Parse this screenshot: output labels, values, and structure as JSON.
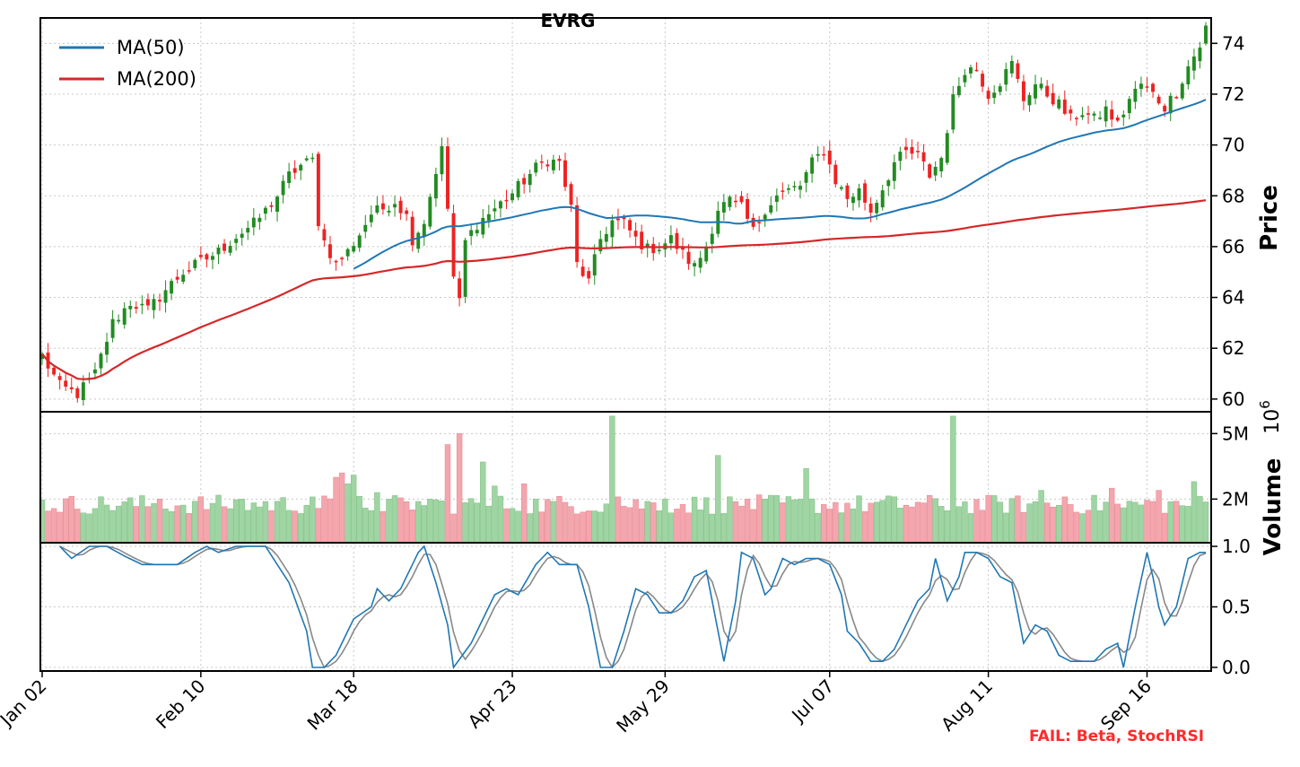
{
  "title": "EVRG",
  "status_note": "FAIL: Beta, StochRSI",
  "colors": {
    "up": "#228b22",
    "down": "#ee2222",
    "vol_up": "#9fd4a3",
    "vol_down": "#f5a5ad",
    "ma50": "#1f77b4",
    "ma200": "#d62728",
    "k_line": "#1f77b4",
    "d_line": "#888888"
  },
  "chart_data": [
    {
      "type": "candlestick",
      "panel": "price",
      "ylabel": "Price",
      "ylim": [
        59.5,
        75.0
      ],
      "yticks": [
        "60",
        "62",
        "64",
        "66",
        "68",
        "70",
        "72",
        "74"
      ],
      "legend": [
        "MA(50)",
        "MA(200)"
      ],
      "legend_position": "top-left",
      "grid": true,
      "anchors": [
        [
          0,
          61.7
        ],
        [
          3,
          60.5
        ],
        [
          6,
          60.2
        ],
        [
          9,
          61.0
        ],
        [
          12,
          63.0
        ],
        [
          15,
          63.8
        ],
        [
          18,
          63.5
        ],
        [
          21,
          64.3
        ],
        [
          24,
          65.0
        ],
        [
          27,
          65.4
        ],
        [
          30,
          65.8
        ],
        [
          33,
          66.4
        ],
        [
          36,
          66.9
        ],
        [
          38,
          67.4
        ],
        [
          40,
          68.0
        ],
        [
          42,
          68.8
        ],
        [
          44,
          69.2
        ],
        [
          46,
          69.4
        ],
        [
          47,
          67.0
        ],
        [
          48,
          66.2
        ],
        [
          50,
          65.3
        ],
        [
          52,
          65.8
        ],
        [
          54,
          66.5
        ],
        [
          56,
          67.3
        ],
        [
          58,
          67.5
        ],
        [
          60,
          67.8
        ],
        [
          62,
          67.2
        ],
        [
          63,
          66.3
        ],
        [
          65,
          67.0
        ],
        [
          67,
          69.0
        ],
        [
          68,
          69.8
        ],
        [
          69,
          67.5
        ],
        [
          70,
          64.8
        ],
        [
          71,
          63.8
        ],
        [
          72,
          66.2
        ],
        [
          74,
          66.9
        ],
        [
          76,
          67.3
        ],
        [
          78,
          67.7
        ],
        [
          80,
          68.1
        ],
        [
          82,
          68.6
        ],
        [
          84,
          69.1
        ],
        [
          86,
          69.4
        ],
        [
          88,
          69.3
        ],
        [
          90,
          67.5
        ],
        [
          91,
          65.3
        ],
        [
          93,
          64.6
        ],
        [
          95,
          66.3
        ],
        [
          97,
          67.0
        ],
        [
          99,
          66.9
        ],
        [
          101,
          66.3
        ],
        [
          103,
          65.9
        ],
        [
          105,
          66.0
        ],
        [
          107,
          66.3
        ],
        [
          109,
          65.7
        ],
        [
          111,
          65.2
        ],
        [
          113,
          66.0
        ],
        [
          115,
          67.5
        ],
        [
          117,
          67.8
        ],
        [
          119,
          67.5
        ],
        [
          121,
          66.6
        ],
        [
          123,
          67.5
        ],
        [
          125,
          68.0
        ],
        [
          127,
          68.2
        ],
        [
          129,
          68.4
        ],
        [
          131,
          69.3
        ],
        [
          133,
          69.8
        ],
        [
          135,
          68.6
        ],
        [
          137,
          67.9
        ],
        [
          139,
          68.2
        ],
        [
          141,
          67.4
        ],
        [
          143,
          68.3
        ],
        [
          145,
          69.3
        ],
        [
          147,
          69.7
        ],
        [
          149,
          69.6
        ],
        [
          151,
          68.8
        ],
        [
          153,
          69.5
        ],
        [
          155,
          71.8
        ],
        [
          157,
          73.0
        ],
        [
          159,
          73.0
        ],
        [
          161,
          72.0
        ],
        [
          163,
          72.5
        ],
        [
          165,
          73.2
        ],
        [
          167,
          71.8
        ],
        [
          169,
          72.4
        ],
        [
          171,
          72.0
        ],
        [
          173,
          71.6
        ],
        [
          175,
          71.0
        ],
        [
          177,
          71.3
        ],
        [
          179,
          71.0
        ],
        [
          181,
          71.4
        ],
        [
          183,
          70.8
        ],
        [
          185,
          71.8
        ],
        [
          187,
          72.4
        ],
        [
          189,
          72.0
        ],
        [
          191,
          71.5
        ],
        [
          193,
          72.1
        ],
        [
          195,
          73.1
        ],
        [
          197,
          73.9
        ],
        [
          198,
          74.6
        ]
      ]
    },
    {
      "type": "bar",
      "panel": "volume",
      "ylabel": "Volume",
      "y_scale_label": "10^6",
      "ylim": [
        0,
        6.0
      ],
      "yticks": [
        "2M",
        "5M"
      ],
      "grid": true,
      "base_volume_millions": 1.3,
      "spikes": [
        [
          69,
          4.5
        ],
        [
          71,
          5.0
        ],
        [
          97,
          5.8
        ],
        [
          115,
          4.0
        ],
        [
          155,
          5.8
        ],
        [
          130,
          3.4
        ],
        [
          51,
          3.2
        ],
        [
          53,
          3.1
        ],
        [
          50,
          3.0
        ],
        [
          75,
          3.7
        ],
        [
          77,
          2.6
        ],
        [
          82,
          2.7
        ],
        [
          170,
          2.4
        ],
        [
          182,
          2.5
        ],
        [
          190,
          2.4
        ],
        [
          196,
          2.8
        ],
        [
          20,
          2.0
        ],
        [
          34,
          2.0
        ],
        [
          46,
          2.1
        ],
        [
          52,
          2.7
        ],
        [
          57,
          2.3
        ],
        [
          66,
          2.0
        ],
        [
          98,
          2.1
        ],
        [
          106,
          2.0
        ],
        [
          120,
          2.0
        ],
        [
          174,
          2.1
        ],
        [
          184,
          1.6
        ]
      ]
    },
    {
      "type": "line",
      "panel": "stochrsi",
      "ylim": [
        -0.03,
        1.03
      ],
      "yticks": [
        "0.0",
        "0.5",
        "1.0"
      ],
      "grid": true,
      "series": [
        {
          "role": "k",
          "points": [
            [
              3,
              1.0
            ],
            [
              5,
              0.9
            ],
            [
              8,
              1.0
            ],
            [
              11,
              1.0
            ],
            [
              14,
              0.92
            ],
            [
              17,
              0.85
            ],
            [
              20,
              0.85
            ],
            [
              23,
              0.85
            ],
            [
              26,
              0.95
            ],
            [
              28,
              1.0
            ],
            [
              30,
              0.95
            ],
            [
              33,
              1.0
            ],
            [
              38,
              1.0
            ],
            [
              40,
              0.85
            ],
            [
              42,
              0.7
            ],
            [
              45,
              0.3
            ],
            [
              46,
              0.0
            ],
            [
              48,
              0.0
            ],
            [
              50,
              0.1
            ],
            [
              53,
              0.4
            ],
            [
              56,
              0.5
            ],
            [
              57,
              0.65
            ],
            [
              59,
              0.55
            ],
            [
              61,
              0.65
            ],
            [
              64,
              0.95
            ],
            [
              65,
              1.0
            ],
            [
              67,
              0.7
            ],
            [
              69,
              0.35
            ],
            [
              70,
              0.0
            ],
            [
              73,
              0.2
            ],
            [
              75,
              0.4
            ],
            [
              77,
              0.6
            ],
            [
              79,
              0.65
            ],
            [
              81,
              0.6
            ],
            [
              84,
              0.85
            ],
            [
              86,
              0.95
            ],
            [
              88,
              0.85
            ],
            [
              91,
              0.85
            ],
            [
              93,
              0.5
            ],
            [
              95,
              0.0
            ],
            [
              97,
              0.0
            ],
            [
              99,
              0.3
            ],
            [
              101,
              0.65
            ],
            [
              103,
              0.6
            ],
            [
              105,
              0.45
            ],
            [
              107,
              0.45
            ],
            [
              109,
              0.55
            ],
            [
              111,
              0.75
            ],
            [
              113,
              0.8
            ],
            [
              115,
              0.3
            ],
            [
              116,
              0.05
            ],
            [
              118,
              0.55
            ],
            [
              119,
              0.95
            ],
            [
              121,
              0.9
            ],
            [
              123,
              0.6
            ],
            [
              124,
              0.65
            ],
            [
              126,
              0.9
            ],
            [
              128,
              0.85
            ],
            [
              130,
              0.9
            ],
            [
              132,
              0.9
            ],
            [
              134,
              0.85
            ],
            [
              136,
              0.6
            ],
            [
              137,
              0.3
            ],
            [
              139,
              0.2
            ],
            [
              141,
              0.05
            ],
            [
              143,
              0.05
            ],
            [
              145,
              0.15
            ],
            [
              147,
              0.35
            ],
            [
              149,
              0.55
            ],
            [
              151,
              0.65
            ],
            [
              152,
              0.9
            ],
            [
              154,
              0.55
            ],
            [
              156,
              0.75
            ],
            [
              157,
              0.95
            ],
            [
              159,
              0.95
            ],
            [
              161,
              0.9
            ],
            [
              163,
              0.75
            ],
            [
              165,
              0.7
            ],
            [
              167,
              0.2
            ],
            [
              169,
              0.35
            ],
            [
              171,
              0.3
            ],
            [
              173,
              0.1
            ],
            [
              175,
              0.05
            ],
            [
              177,
              0.05
            ],
            [
              179,
              0.05
            ],
            [
              181,
              0.15
            ],
            [
              183,
              0.2
            ],
            [
              184,
              0.0
            ],
            [
              186,
              0.5
            ],
            [
              188,
              0.95
            ],
            [
              189,
              0.75
            ],
            [
              190,
              0.5
            ],
            [
              191,
              0.35
            ],
            [
              193,
              0.5
            ],
            [
              195,
              0.9
            ],
            [
              197,
              0.95
            ],
            [
              198,
              0.95
            ]
          ]
        }
      ]
    }
  ],
  "x_axis": {
    "tick_labels": [
      "Jan 02",
      "Feb 10",
      "Mar 18",
      "Apr 23",
      "May 29",
      "Jul 07",
      "Aug 11",
      "Sep 16"
    ],
    "tick_bar_index": [
      0,
      27,
      53,
      80,
      106,
      134,
      161,
      188
    ],
    "n_bars": 199
  }
}
